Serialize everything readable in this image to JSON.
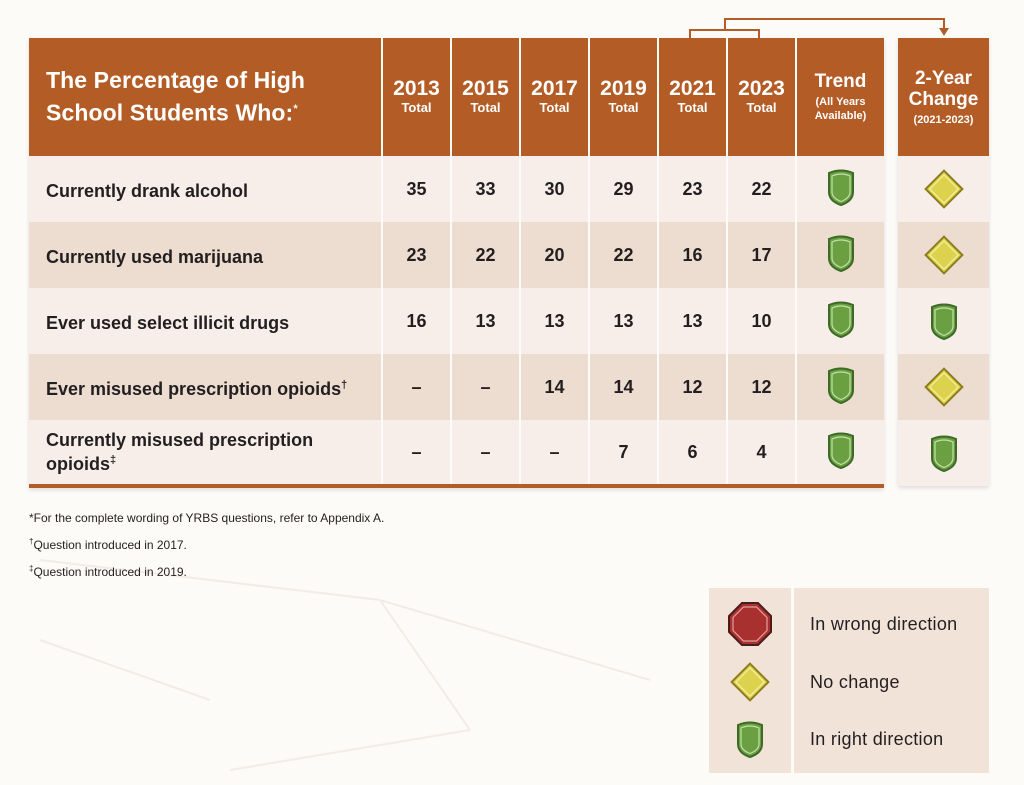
{
  "table": {
    "title": "The Percentage of High School Students Who:",
    "title_mark": "*",
    "year_sub": "Total",
    "trend": {
      "title": "Trend",
      "sub": "(All Years Available)"
    },
    "change": {
      "title": "2-Year Change",
      "sub": "(2021-2023)"
    }
  },
  "chart_data": {
    "type": "table",
    "title": "The Percentage of High School Students Who:*",
    "columns": [
      "2013",
      "2015",
      "2017",
      "2019",
      "2021",
      "2023"
    ],
    "column_sublabel": "Total",
    "rows": [
      {
        "label": "Currently drank alcohol",
        "mark": "",
        "values": [
          "35",
          "33",
          "30",
          "29",
          "23",
          "22"
        ],
        "trend": "right",
        "change": "none"
      },
      {
        "label": "Currently used marijuana",
        "mark": "",
        "values": [
          "23",
          "22",
          "20",
          "22",
          "16",
          "17"
        ],
        "trend": "right",
        "change": "none"
      },
      {
        "label": "Ever used select illicit drugs",
        "mark": "",
        "values": [
          "16",
          "13",
          "13",
          "13",
          "13",
          "10"
        ],
        "trend": "right",
        "change": "right"
      },
      {
        "label": "Ever misused prescription opioids",
        "mark": "†",
        "values": [
          "–",
          "–",
          "14",
          "14",
          "12",
          "12"
        ],
        "trend": "right",
        "change": "none"
      },
      {
        "label": "Currently misused prescription opioids",
        "mark": "‡",
        "values": [
          "–",
          "–",
          "–",
          "7",
          "6",
          "4"
        ],
        "trend": "right",
        "change": "right"
      }
    ]
  },
  "notes": {
    "n1": "*For the complete wording of YRBS questions, refer to Appendix A.",
    "n2_mark": "†",
    "n2": "Question introduced in 2017.",
    "n3_mark": "‡",
    "n3": "Question introduced in 2019."
  },
  "legend": {
    "wrong": "In wrong direction",
    "none": "No change",
    "right": "In right direction"
  },
  "colors": {
    "header": "#b35c26",
    "row_light": "#f7eeea",
    "row_dark": "#eddcd0",
    "shield_green": "#6aa042",
    "diamond_yellow": "#ddd24e",
    "octagon_red": "#a8302e"
  }
}
